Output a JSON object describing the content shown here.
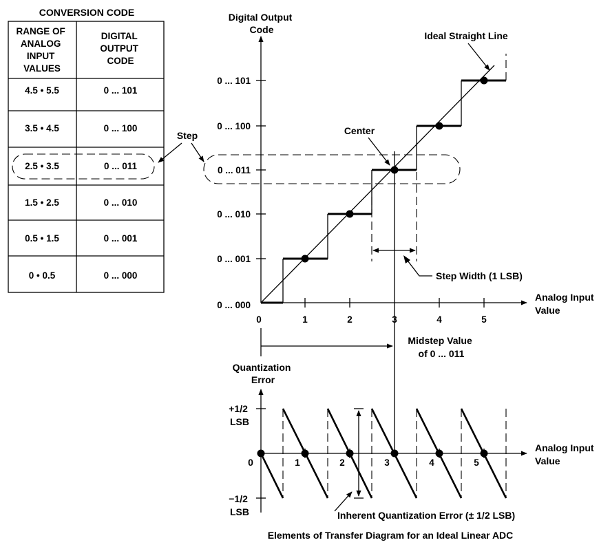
{
  "table": {
    "title": "CONVERSION CODE",
    "header_range": [
      "RANGE OF",
      "ANALOG",
      "INPUT",
      "VALUES"
    ],
    "header_code": [
      "DIGITAL",
      "OUTPUT",
      "CODE"
    ],
    "rows": [
      {
        "range": "4.5 • 5.5",
        "code": "0 ... 101"
      },
      {
        "range": "3.5 • 4.5",
        "code": "0 ... 100"
      },
      {
        "range": "2.5 • 3.5",
        "code": "0 ... 011"
      },
      {
        "range": "1.5 • 2.5",
        "code": "0 ... 010"
      },
      {
        "range": "0.5 • 1.5",
        "code": "0 ... 001"
      },
      {
        "range": "0 • 0.5",
        "code": "0 ... 000"
      }
    ],
    "highlighted_row": 2
  },
  "transfer": {
    "y_axis_label": [
      "Digital Output",
      "Code"
    ],
    "x_axis_label": [
      "Analog Input",
      "Value"
    ],
    "y_ticks": [
      "0 ... 000",
      "0 ... 001",
      "0 ... 010",
      "0 ... 011",
      "0 ... 100",
      "0 ... 101"
    ],
    "x_ticks": [
      "0",
      "1",
      "2",
      "3",
      "4",
      "5"
    ],
    "ideal_line_label": "Ideal Straight Line",
    "center_label": "Center",
    "step_label": "Step",
    "step_width_label": "Step Width (1 LSB)",
    "midstep_label": [
      "Midstep Value",
      "of 0 ... 011"
    ]
  },
  "error_plot": {
    "y_axis_label": [
      "Quantization",
      "Error"
    ],
    "x_axis_label": [
      "Analog Input",
      "Value"
    ],
    "y_top_label": [
      "+1/2",
      "LSB"
    ],
    "y_bottom_label": [
      "−1/2",
      "LSB"
    ],
    "zero_label": "0",
    "x_ticks": [
      "1",
      "2",
      "3",
      "4",
      "5"
    ],
    "inherent_error_label": "Inherent Quantization Error (± 1/2 LSB)"
  },
  "caption": "Elements of Transfer Diagram for an Ideal Linear ADC"
}
